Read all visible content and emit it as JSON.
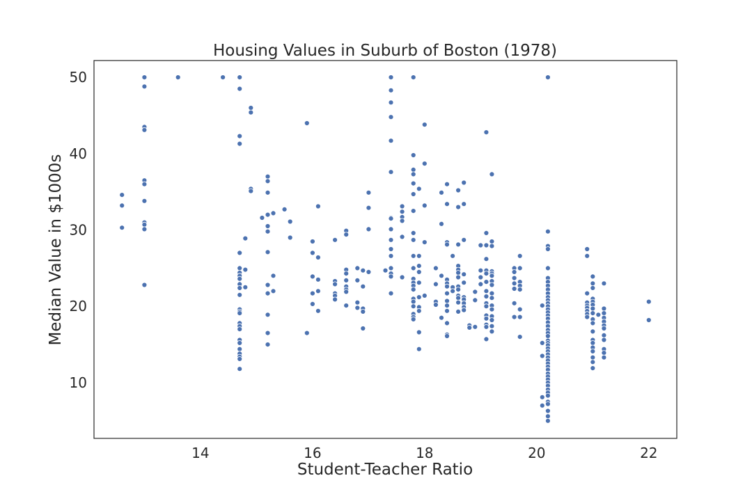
{
  "chart_data": {
    "type": "scatter",
    "title": "Housing Values in Suburb of Boston (1978)",
    "xlabel": "Student-Teacher Ratio",
    "ylabel": "Median Value in $1000s",
    "xlim": [
      12.1,
      22.5
    ],
    "ylim": [
      2.7,
      52.2
    ],
    "xticks": [
      14,
      16,
      18,
      20,
      22
    ],
    "yticks": [
      10,
      20,
      30,
      40,
      50
    ],
    "grid": false,
    "legend": "none",
    "marker_color": "#4c72b0",
    "points": [
      [
        12.6,
        34.6
      ],
      [
        12.6,
        33.2
      ],
      [
        12.6,
        30.3
      ],
      [
        13.0,
        50.0
      ],
      [
        13.0,
        48.8
      ],
      [
        13.0,
        43.5
      ],
      [
        13.0,
        43.1
      ],
      [
        13.0,
        36.5
      ],
      [
        13.0,
        36.0
      ],
      [
        13.0,
        33.8
      ],
      [
        13.0,
        31.0
      ],
      [
        13.0,
        30.7
      ],
      [
        13.0,
        30.1
      ],
      [
        13.0,
        22.8
      ],
      [
        13.6,
        50.0
      ],
      [
        14.4,
        50.0
      ],
      [
        14.7,
        50.0
      ],
      [
        14.7,
        48.5
      ],
      [
        14.7,
        42.3
      ],
      [
        14.7,
        41.3
      ],
      [
        14.7,
        27.0
      ],
      [
        14.7,
        25.0
      ],
      [
        14.7,
        24.4
      ],
      [
        14.7,
        24.0
      ],
      [
        14.7,
        23.6
      ],
      [
        14.7,
        22.9
      ],
      [
        14.7,
        22.4
      ],
      [
        14.7,
        21.5
      ],
      [
        14.7,
        19.6
      ],
      [
        14.7,
        19.3
      ],
      [
        14.7,
        19.1
      ],
      [
        14.7,
        17.8
      ],
      [
        14.7,
        17.4
      ],
      [
        14.7,
        17.0
      ],
      [
        14.7,
        15.6
      ],
      [
        14.7,
        15.2
      ],
      [
        14.7,
        14.4
      ],
      [
        14.7,
        13.8
      ],
      [
        14.7,
        13.4
      ],
      [
        14.7,
        13.1
      ],
      [
        14.7,
        11.8
      ],
      [
        14.8,
        28.9
      ],
      [
        14.8,
        24.8
      ],
      [
        14.8,
        22.5
      ],
      [
        14.9,
        46.0
      ],
      [
        14.9,
        45.4
      ],
      [
        14.9,
        35.4
      ],
      [
        14.9,
        35.1
      ],
      [
        15.1,
        31.6
      ],
      [
        15.2,
        37.0
      ],
      [
        15.2,
        36.4
      ],
      [
        15.2,
        34.9
      ],
      [
        15.2,
        32.0
      ],
      [
        15.2,
        30.5
      ],
      [
        15.2,
        29.8
      ],
      [
        15.2,
        27.1
      ],
      [
        15.2,
        22.8
      ],
      [
        15.2,
        21.7
      ],
      [
        15.2,
        18.9
      ],
      [
        15.2,
        16.5
      ],
      [
        15.2,
        15.0
      ],
      [
        15.3,
        32.2
      ],
      [
        15.3,
        24.0
      ],
      [
        15.3,
        22.0
      ],
      [
        15.5,
        32.7
      ],
      [
        15.6,
        31.1
      ],
      [
        15.6,
        29.0
      ],
      [
        15.9,
        44.0
      ],
      [
        15.9,
        16.5
      ],
      [
        16.0,
        28.5
      ],
      [
        16.0,
        27.0
      ],
      [
        16.0,
        23.9
      ],
      [
        16.0,
        21.7
      ],
      [
        16.0,
        20.3
      ],
      [
        16.1,
        33.1
      ],
      [
        16.1,
        26.4
      ],
      [
        16.1,
        23.5
      ],
      [
        16.1,
        22.0
      ],
      [
        16.1,
        19.4
      ],
      [
        16.4,
        28.7
      ],
      [
        16.4,
        23.3
      ],
      [
        16.4,
        22.9
      ],
      [
        16.4,
        21.7
      ],
      [
        16.4,
        21.4
      ],
      [
        16.4,
        20.9
      ],
      [
        16.6,
        29.9
      ],
      [
        16.6,
        29.4
      ],
      [
        16.6,
        24.8
      ],
      [
        16.6,
        24.3
      ],
      [
        16.6,
        23.4
      ],
      [
        16.6,
        22.6
      ],
      [
        16.6,
        22.2
      ],
      [
        16.6,
        21.9
      ],
      [
        16.6,
        20.1
      ],
      [
        16.8,
        25.0
      ],
      [
        16.8,
        23.4
      ],
      [
        16.8,
        20.5
      ],
      [
        16.8,
        19.8
      ],
      [
        16.9,
        24.7
      ],
      [
        16.9,
        22.6
      ],
      [
        16.9,
        19.7
      ],
      [
        16.9,
        19.3
      ],
      [
        16.9,
        17.1
      ],
      [
        17.0,
        34.9
      ],
      [
        17.0,
        32.9
      ],
      [
        17.0,
        30.1
      ],
      [
        17.0,
        24.5
      ],
      [
        17.3,
        24.7
      ],
      [
        17.4,
        50.0
      ],
      [
        17.4,
        48.3
      ],
      [
        17.4,
        46.7
      ],
      [
        17.4,
        44.8
      ],
      [
        17.4,
        41.7
      ],
      [
        17.4,
        37.6
      ],
      [
        17.4,
        31.6
      ],
      [
        17.4,
        31.5
      ],
      [
        17.4,
        30.1
      ],
      [
        17.4,
        28.7
      ],
      [
        17.4,
        27.5
      ],
      [
        17.4,
        26.6
      ],
      [
        17.4,
        25.0
      ],
      [
        17.4,
        24.3
      ],
      [
        17.4,
        23.9
      ],
      [
        17.4,
        21.7
      ],
      [
        17.6,
        33.1
      ],
      [
        17.6,
        32.4
      ],
      [
        17.6,
        31.7
      ],
      [
        17.6,
        31.2
      ],
      [
        17.6,
        29.1
      ],
      [
        17.6,
        23.8
      ],
      [
        17.8,
        50.0
      ],
      [
        17.8,
        39.8
      ],
      [
        17.8,
        37.9
      ],
      [
        17.8,
        37.3
      ],
      [
        17.8,
        36.1
      ],
      [
        17.8,
        34.7
      ],
      [
        17.8,
        32.5
      ],
      [
        17.8,
        29.6
      ],
      [
        17.8,
        28.7
      ],
      [
        17.8,
        26.6
      ],
      [
        17.8,
        25.0
      ],
      [
        17.8,
        23.6
      ],
      [
        17.8,
        23.1
      ],
      [
        17.8,
        22.7
      ],
      [
        17.8,
        22.2
      ],
      [
        17.8,
        21.0
      ],
      [
        17.8,
        20.6
      ],
      [
        17.8,
        20.0
      ],
      [
        17.8,
        19.0
      ],
      [
        17.8,
        18.6
      ],
      [
        17.8,
        18.3
      ],
      [
        17.9,
        35.4
      ],
      [
        17.9,
        26.6
      ],
      [
        17.9,
        25.3
      ],
      [
        17.9,
        24.5
      ],
      [
        17.9,
        23.1
      ],
      [
        17.9,
        21.2
      ],
      [
        17.9,
        19.9
      ],
      [
        17.9,
        19.4
      ],
      [
        17.9,
        16.6
      ],
      [
        17.9,
        14.4
      ],
      [
        18.0,
        43.8
      ],
      [
        18.0,
        38.7
      ],
      [
        18.0,
        33.2
      ],
      [
        18.0,
        28.4
      ],
      [
        18.0,
        21.4
      ],
      [
        18.2,
        25.0
      ],
      [
        18.2,
        22.9
      ],
      [
        18.2,
        20.6
      ],
      [
        18.2,
        20.2
      ],
      [
        18.3,
        34.9
      ],
      [
        18.3,
        30.8
      ],
      [
        18.3,
        24.0
      ],
      [
        18.3,
        18.5
      ],
      [
        18.4,
        36.0
      ],
      [
        18.4,
        33.4
      ],
      [
        18.4,
        28.4
      ],
      [
        18.4,
        28.1
      ],
      [
        18.4,
        23.5
      ],
      [
        18.4,
        23.0
      ],
      [
        18.4,
        22.6
      ],
      [
        18.4,
        21.7
      ],
      [
        18.4,
        20.7
      ],
      [
        18.4,
        20.1
      ],
      [
        18.4,
        19.4
      ],
      [
        18.4,
        17.8
      ],
      [
        18.4,
        16.3
      ],
      [
        18.4,
        16.1
      ],
      [
        18.5,
        26.6
      ],
      [
        18.5,
        22.5
      ],
      [
        18.5,
        22.0
      ],
      [
        18.6,
        35.2
      ],
      [
        18.6,
        33.0
      ],
      [
        18.6,
        28.1
      ],
      [
        18.6,
        25.3
      ],
      [
        18.6,
        24.8
      ],
      [
        18.6,
        24.4
      ],
      [
        18.6,
        23.8
      ],
      [
        18.6,
        22.6
      ],
      [
        18.6,
        22.2
      ],
      [
        18.6,
        21.4
      ],
      [
        18.6,
        21.1
      ],
      [
        18.6,
        20.5
      ],
      [
        18.6,
        19.3
      ],
      [
        18.7,
        36.2
      ],
      [
        18.7,
        33.4
      ],
      [
        18.7,
        28.7
      ],
      [
        18.7,
        24.2
      ],
      [
        18.7,
        23.1
      ],
      [
        18.7,
        21.2
      ],
      [
        18.7,
        20.9
      ],
      [
        18.7,
        20.4
      ],
      [
        18.7,
        19.9
      ],
      [
        18.7,
        19.5
      ],
      [
        18.8,
        17.5
      ],
      [
        18.8,
        17.2
      ],
      [
        18.9,
        21.9
      ],
      [
        18.9,
        20.8
      ],
      [
        18.9,
        17.3
      ],
      [
        19.0,
        28.0
      ],
      [
        19.0,
        24.7
      ],
      [
        19.0,
        23.8
      ],
      [
        19.0,
        22.9
      ],
      [
        19.1,
        42.8
      ],
      [
        19.1,
        29.6
      ],
      [
        19.1,
        28.0
      ],
      [
        19.1,
        26.2
      ],
      [
        19.1,
        24.7
      ],
      [
        19.1,
        24.3
      ],
      [
        19.1,
        23.2
      ],
      [
        19.1,
        22.0
      ],
      [
        19.1,
        21.3
      ],
      [
        19.1,
        20.4
      ],
      [
        19.1,
        20.0
      ],
      [
        19.1,
        18.8
      ],
      [
        19.1,
        18.4
      ],
      [
        19.1,
        17.6
      ],
      [
        19.1,
        17.3
      ],
      [
        19.1,
        15.7
      ],
      [
        19.2,
        37.3
      ],
      [
        19.2,
        28.5
      ],
      [
        19.2,
        27.9
      ],
      [
        19.2,
        24.6
      ],
      [
        19.2,
        24.3
      ],
      [
        19.2,
        24.0
      ],
      [
        19.2,
        23.3
      ],
      [
        19.2,
        22.8
      ],
      [
        19.2,
        21.7
      ],
      [
        19.2,
        21.1
      ],
      [
        19.2,
        20.1
      ],
      [
        19.2,
        19.6
      ],
      [
        19.2,
        18.7
      ],
      [
        19.2,
        18.2
      ],
      [
        19.2,
        17.4
      ],
      [
        19.2,
        16.7
      ],
      [
        19.6,
        25.0
      ],
      [
        19.6,
        24.5
      ],
      [
        19.6,
        23.7
      ],
      [
        19.6,
        23.0
      ],
      [
        19.6,
        22.3
      ],
      [
        19.6,
        20.4
      ],
      [
        19.6,
        18.6
      ],
      [
        19.7,
        26.6
      ],
      [
        19.7,
        25.0
      ],
      [
        19.7,
        23.2
      ],
      [
        19.7,
        22.7
      ],
      [
        19.7,
        22.2
      ],
      [
        19.7,
        19.6
      ],
      [
        19.7,
        18.6
      ],
      [
        19.7,
        16.0
      ],
      [
        20.1,
        20.1
      ],
      [
        20.1,
        15.2
      ],
      [
        20.1,
        13.5
      ],
      [
        20.1,
        8.1
      ],
      [
        20.1,
        7.0
      ],
      [
        20.2,
        50.0
      ],
      [
        20.2,
        29.8
      ],
      [
        20.2,
        27.9
      ],
      [
        20.2,
        27.5
      ],
      [
        20.2,
        25.0
      ],
      [
        20.2,
        23.7
      ],
      [
        20.2,
        23.2
      ],
      [
        20.2,
        22.7
      ],
      [
        20.2,
        22.2
      ],
      [
        20.2,
        21.7
      ],
      [
        20.2,
        21.2
      ],
      [
        20.2,
        20.8
      ],
      [
        20.2,
        20.4
      ],
      [
        20.2,
        20.0
      ],
      [
        20.2,
        19.6
      ],
      [
        20.2,
        19.2
      ],
      [
        20.2,
        18.8
      ],
      [
        20.2,
        18.4
      ],
      [
        20.2,
        17.9
      ],
      [
        20.2,
        17.4
      ],
      [
        20.2,
        16.9
      ],
      [
        20.2,
        16.5
      ],
      [
        20.2,
        16.1
      ],
      [
        20.2,
        15.5
      ],
      [
        20.2,
        15.2
      ],
      [
        20.2,
        14.9
      ],
      [
        20.2,
        14.5
      ],
      [
        20.2,
        14.1
      ],
      [
        20.2,
        13.7
      ],
      [
        20.2,
        13.3
      ],
      [
        20.2,
        12.9
      ],
      [
        20.2,
        12.5
      ],
      [
        20.2,
        12.1
      ],
      [
        20.2,
        11.7
      ],
      [
        20.2,
        11.2
      ],
      [
        20.2,
        10.8
      ],
      [
        20.2,
        10.4
      ],
      [
        20.2,
        10.0
      ],
      [
        20.2,
        9.6
      ],
      [
        20.2,
        9.1
      ],
      [
        20.2,
        8.7
      ],
      [
        20.2,
        8.3
      ],
      [
        20.2,
        7.5
      ],
      [
        20.2,
        7.2
      ],
      [
        20.2,
        6.3
      ],
      [
        20.2,
        5.6
      ],
      [
        20.2,
        5.0
      ],
      [
        20.9,
        27.5
      ],
      [
        20.9,
        26.6
      ],
      [
        20.9,
        21.7
      ],
      [
        20.9,
        20.5
      ],
      [
        20.9,
        20.1
      ],
      [
        20.9,
        19.8
      ],
      [
        20.9,
        19.4
      ],
      [
        20.9,
        19.0
      ],
      [
        20.9,
        18.6
      ],
      [
        21.0,
        23.9
      ],
      [
        21.0,
        23.0
      ],
      [
        21.0,
        22.4
      ],
      [
        21.0,
        21.0
      ],
      [
        21.0,
        20.6
      ],
      [
        21.0,
        20.2
      ],
      [
        21.0,
        19.7
      ],
      [
        21.0,
        19.1
      ],
      [
        21.0,
        18.3
      ],
      [
        21.0,
        17.8
      ],
      [
        21.0,
        16.7
      ],
      [
        21.0,
        15.6
      ],
      [
        21.0,
        15.2
      ],
      [
        21.0,
        14.6
      ],
      [
        21.0,
        14.1
      ],
      [
        21.0,
        13.3
      ],
      [
        21.0,
        12.7
      ],
      [
        21.0,
        11.9
      ],
      [
        21.1,
        18.9
      ],
      [
        21.2,
        23.0
      ],
      [
        21.2,
        19.7
      ],
      [
        21.2,
        19.1
      ],
      [
        21.2,
        18.5
      ],
      [
        21.2,
        18.0
      ],
      [
        21.2,
        17.5
      ],
      [
        21.2,
        17.1
      ],
      [
        21.2,
        16.2
      ],
      [
        21.2,
        15.6
      ],
      [
        21.2,
        14.4
      ],
      [
        21.2,
        13.9
      ],
      [
        21.2,
        13.3
      ],
      [
        22.0,
        20.6
      ],
      [
        22.0,
        18.2
      ]
    ]
  }
}
